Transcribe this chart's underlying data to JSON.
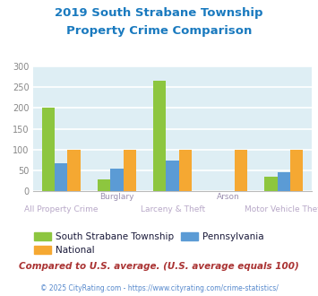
{
  "title_line1": "2019 South Strabane Township",
  "title_line2": "Property Crime Comparison",
  "title_color": "#1a7abf",
  "categories": [
    "All Property Crime",
    "Burglary",
    "Larceny & Theft",
    "Arson",
    "Motor Vehicle Theft"
  ],
  "cat_labels_top": [
    "",
    "Burglary",
    "",
    "Arson",
    ""
  ],
  "cat_labels_bottom": [
    "All Property Crime",
    "",
    "Larceny & Theft",
    "",
    "Motor Vehicle Theft"
  ],
  "top_label_color": "#9b8fb0",
  "bottom_label_color": "#b8a8c8",
  "series_order": [
    "South Strabane Township",
    "Pennsylvania",
    "National"
  ],
  "series": {
    "South Strabane Township": {
      "values": [
        202,
        27,
        265,
        0,
        35
      ],
      "color": "#8dc63f"
    },
    "National": {
      "values": [
        100,
        100,
        100,
        100,
        100
      ],
      "color": "#f5a832"
    },
    "Pennsylvania": {
      "values": [
        67,
        53,
        74,
        0,
        45
      ],
      "color": "#5b9bd5"
    }
  },
  "ylim": [
    0,
    300
  ],
  "yticks": [
    0,
    50,
    100,
    150,
    200,
    250,
    300
  ],
  "plot_bg_color": "#deeef4",
  "figure_bg": "#ffffff",
  "grid_color": "#ffffff",
  "footer_text": "Compared to U.S. average. (U.S. average equals 100)",
  "footer_color": "#aa3333",
  "copyright_text": "© 2025 CityRating.com - https://www.cityrating.com/crime-statistics/",
  "copyright_color": "#5588cc",
  "legend_items": [
    "South Strabane Township",
    "National",
    "Pennsylvania"
  ],
  "legend_colors": [
    "#8dc63f",
    "#f5a832",
    "#5b9bd5"
  ]
}
